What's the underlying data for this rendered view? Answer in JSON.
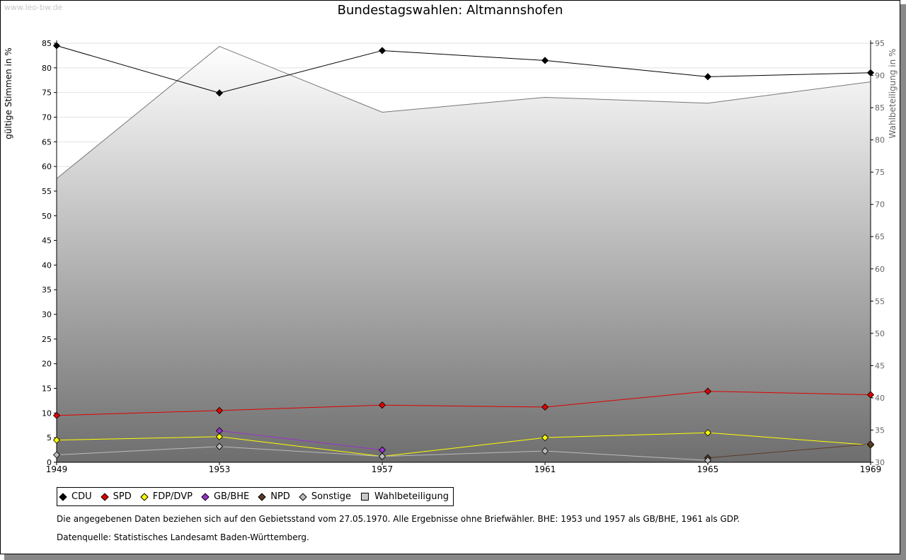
{
  "watermark": "www.leo-bw.de",
  "chart_data": {
    "type": "line",
    "title": "Bundestagswahlen: Altmannshofen",
    "x": [
      "1949",
      "1953",
      "1957",
      "1961",
      "1965",
      "1969"
    ],
    "ylabel": "gültige Stimmen in %",
    "y2label": "Wahlbeteiligung in %",
    "ylim": [
      0,
      85
    ],
    "yticks": [
      "0",
      "5",
      "10",
      "15",
      "20",
      "25",
      "30",
      "35",
      "40",
      "45",
      "50",
      "55",
      "60",
      "65",
      "70",
      "75",
      "80",
      "85"
    ],
    "y2lim": [
      30,
      95
    ],
    "y2ticks": [
      "30",
      "35",
      "40",
      "45",
      "50",
      "55",
      "60",
      "65",
      "70",
      "75",
      "80",
      "85",
      "90",
      "95"
    ],
    "grid": true,
    "legend_position": "bottom",
    "series": [
      {
        "name": "CDU",
        "color": "#000000",
        "values": [
          84.5,
          74.9,
          83.5,
          81.5,
          78.2,
          79.0
        ]
      },
      {
        "name": "SPD",
        "color": "#e00000",
        "values": [
          9.5,
          10.5,
          11.6,
          11.2,
          14.4,
          13.7
        ]
      },
      {
        "name": "FDP/DVP",
        "color": "#ffff00",
        "values": [
          4.5,
          5.2,
          1.2,
          5.0,
          6.0,
          3.5
        ]
      },
      {
        "name": "GB/BHE",
        "color": "#9933cc",
        "values": [
          null,
          6.4,
          2.5,
          null,
          null,
          null
        ]
      },
      {
        "name": "NPD",
        "color": "#5a3a2a",
        "values": [
          null,
          null,
          null,
          null,
          0.9,
          3.7
        ]
      },
      {
        "name": "Sonstige",
        "color": "#bbbbbb",
        "values": [
          1.5,
          3.2,
          1.2,
          2.3,
          0.4,
          null
        ]
      }
    ],
    "area": {
      "name": "Wahlbeteiligung",
      "axis": "right",
      "color": "#c8c8c8",
      "values": [
        74.0,
        94.5,
        84.3,
        86.6,
        85.7,
        89.0
      ]
    }
  },
  "legend": {
    "items": [
      {
        "label": "CDU",
        "color": "#000000",
        "shape": "diamond"
      },
      {
        "label": "SPD",
        "color": "#e00000",
        "shape": "diamond"
      },
      {
        "label": "FDP/DVP",
        "color": "#ffff00",
        "shape": "diamond"
      },
      {
        "label": "GB/BHE",
        "color": "#9933cc",
        "shape": "diamond"
      },
      {
        "label": "NPD",
        "color": "#5a3a2a",
        "shape": "diamond"
      },
      {
        "label": "Sonstige",
        "color": "#bbbbbb",
        "shape": "diamond"
      },
      {
        "label": "Wahlbeteiligung",
        "color": "#c8c8c8",
        "shape": "square"
      }
    ]
  },
  "note": "Die angegebenen Daten beziehen sich auf den Gebietsstand vom 27.05.1970. Alle Ergebnisse ohne Briefwähler. BHE: 1953 und 1957 als GB/BHE, 1961 als GDP.",
  "source": "Datenquelle: Statistisches Landesamt Baden-Württemberg."
}
